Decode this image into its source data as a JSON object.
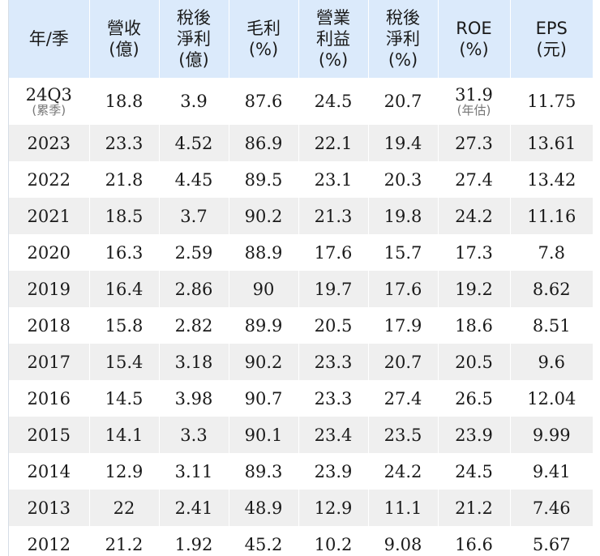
{
  "header": {
    "year": [
      "年/季"
    ],
    "revenue": [
      "營收",
      "(億)"
    ],
    "net_income": [
      "稅後",
      "淨利",
      "(億)"
    ],
    "gross_margin": [
      "毛利",
      "(%)"
    ],
    "operating_margin": [
      "營業",
      "利益",
      "(%)"
    ],
    "net_margin": [
      "稅後",
      "淨利",
      "(%)"
    ],
    "roe": [
      "ROE",
      "(%)"
    ],
    "eps": [
      "EPS",
      "(元)"
    ]
  },
  "first_row": {
    "period": "24Q3",
    "period_note": "(累季)",
    "revenue": "18.8",
    "net_income": "3.9",
    "gross_margin": "87.6",
    "operating_margin": "24.5",
    "net_margin": "20.7",
    "roe": "31.9",
    "roe_note": "(年估)",
    "eps": "11.75"
  },
  "rows": [
    [
      "2023",
      "23.3",
      "4.52",
      "86.9",
      "22.1",
      "19.4",
      "27.3",
      "13.61"
    ],
    [
      "2022",
      "21.8",
      "4.45",
      "89.5",
      "23.1",
      "20.3",
      "27.4",
      "13.42"
    ],
    [
      "2021",
      "18.5",
      "3.7",
      "90.2",
      "21.3",
      "19.8",
      "24.2",
      "11.16"
    ],
    [
      "2020",
      "16.3",
      "2.59",
      "88.9",
      "17.6",
      "15.7",
      "17.3",
      "7.8"
    ],
    [
      "2019",
      "16.4",
      "2.86",
      "90",
      "19.7",
      "17.6",
      "19.2",
      "8.62"
    ],
    [
      "2018",
      "15.8",
      "2.82",
      "89.9",
      "20.5",
      "17.9",
      "18.6",
      "8.51"
    ],
    [
      "2017",
      "15.4",
      "3.18",
      "90.2",
      "23.3",
      "20.7",
      "20.5",
      "9.6"
    ],
    [
      "2016",
      "14.5",
      "3.98",
      "90.7",
      "23.3",
      "27.4",
      "26.5",
      "12.04"
    ],
    [
      "2015",
      "14.1",
      "3.3",
      "90.1",
      "23.4",
      "23.5",
      "23.9",
      "9.99"
    ],
    [
      "2014",
      "12.9",
      "3.11",
      "89.3",
      "23.9",
      "24.2",
      "24.5",
      "9.41"
    ],
    [
      "2013",
      "22",
      "2.41",
      "48.9",
      "12.9",
      "11.1",
      "21.2",
      "7.46"
    ],
    [
      "2012",
      "21.2",
      "1.92",
      "45.2",
      "10.2",
      "9.08",
      "16.6",
      "5.67"
    ]
  ],
  "colors": {
    "header_bg": "#dbeafb",
    "stripe_bg": "#efefef",
    "note_text": "#777777"
  }
}
